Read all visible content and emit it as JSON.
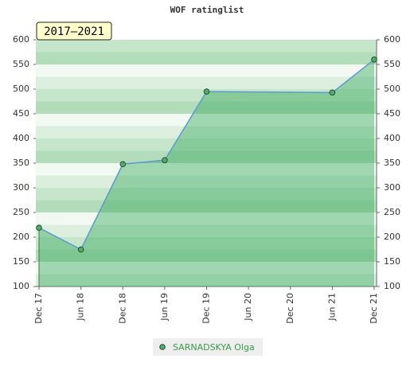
{
  "chart_data": {
    "type": "area",
    "title": "WOF ratinglist",
    "annotation": "2017–2021",
    "categories": [
      "Dec 17",
      "Jun 18",
      "Dec 18",
      "Jun 19",
      "Dec 19",
      "Jun 20",
      "Dec 20",
      "Jun 21",
      "Dec 21"
    ],
    "series": [
      {
        "name": "SARNADSKYA Olga",
        "color": "#5c9bd1",
        "x": [
          "Dec 17",
          "Jun 18",
          "Dec 18",
          "Jun 19",
          "Dec 19",
          "Jun 21",
          "Dec 21"
        ],
        "values": [
          219,
          175,
          348,
          356,
          495,
          493,
          560
        ]
      }
    ],
    "ylim": [
      100,
      600
    ],
    "yticks": [
      100,
      150,
      200,
      250,
      300,
      350,
      400,
      450,
      500,
      550,
      600
    ],
    "y2lim": [
      100,
      600
    ],
    "y2ticks": [
      100,
      150,
      200,
      250,
      300,
      350,
      400,
      450,
      500,
      550,
      600
    ],
    "grid": true
  }
}
